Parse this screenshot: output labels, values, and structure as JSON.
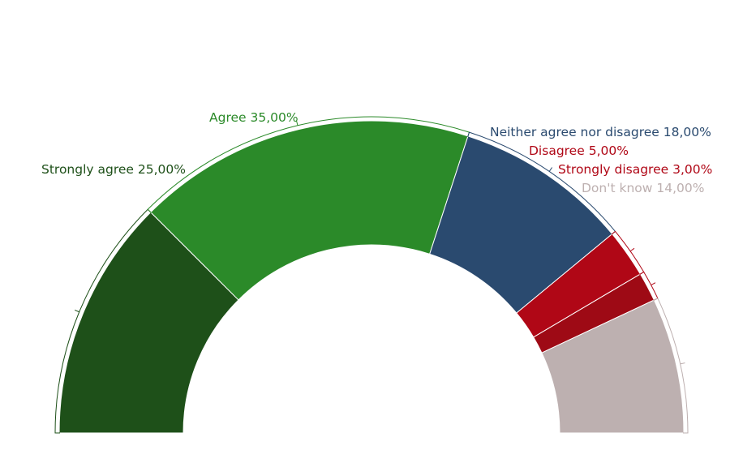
{
  "chart_data": {
    "type": "pie",
    "variant": "half-donut",
    "title": "",
    "slices": [
      {
        "label": "Strongly agree",
        "value": 25,
        "value_text": "25,00%",
        "color": "#1e5019",
        "label_color": "#1e5019"
      },
      {
        "label": "Agree",
        "value": 35,
        "value_text": "35,00%",
        "color": "#2b8a29",
        "label_color": "#2b8a29"
      },
      {
        "label": "Neither agree nor disagree",
        "value": 18,
        "value_text": "18,00%",
        "color": "#2a4a6f",
        "label_color": "#2a4a6f"
      },
      {
        "label": "Disagree",
        "value": 5,
        "value_text": "5,00%",
        "color": "#b00716",
        "label_color": "#b00716"
      },
      {
        "label": "Strongly disagree",
        "value": 3,
        "value_text": "3,00%",
        "color": "#9e0a15",
        "label_color": "#b00716"
      },
      {
        "label": "Don't know",
        "value": 14,
        "value_text": "14,00%",
        "color": "#bdb0b0",
        "label_color": "#bdb0b0"
      }
    ]
  }
}
